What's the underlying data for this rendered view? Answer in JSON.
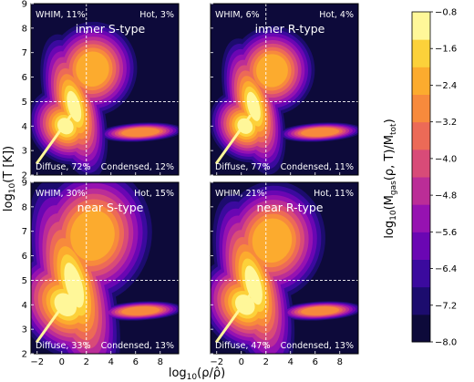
{
  "chart_data": {
    "type": "heatmap",
    "xlabel_main": "log",
    "xlabel_sub": "10",
    "xlabel_rest": "(ρ/ρ̂)",
    "ylabel_main": "log",
    "ylabel_sub": "10",
    "ylabel_rest": "(T [K])",
    "xlim": [
      -2.5,
      9.5
    ],
    "ylim": [
      2,
      9
    ],
    "x_ticks": [
      "−2",
      "0",
      "2",
      "4",
      "6",
      "8"
    ],
    "x_tick_values": [
      -2,
      0,
      2,
      4,
      6,
      8
    ],
    "y_ticks": [
      "2",
      "3",
      "4",
      "5",
      "6",
      "7",
      "8",
      "9"
    ],
    "y_tick_values": [
      2,
      3,
      4,
      5,
      6,
      7,
      8,
      9
    ],
    "threshold_x": 2,
    "threshold_y": 5,
    "panels": [
      {
        "title": "inner S-type",
        "whim": "WHIM, 11%",
        "hot": "Hot, 3%",
        "diffuse": "Diffuse, 72%",
        "condensed": "Condensed, 12%",
        "whim_pct": 11,
        "hot_pct": 3,
        "diffuse_pct": 72,
        "condensed_pct": 12
      },
      {
        "title": "inner R-type",
        "whim": "WHIM, 6%",
        "hot": "Hot, 4%",
        "diffuse": "Diffuse, 77%",
        "condensed": "Condensed, 11%",
        "whim_pct": 6,
        "hot_pct": 4,
        "diffuse_pct": 77,
        "condensed_pct": 11
      },
      {
        "title": "near S-type",
        "whim": "WHIM, 30%",
        "hot": "Hot, 15%",
        "diffuse": "Diffuse, 33%",
        "condensed": "Condensed, 13%",
        "whim_pct": 30,
        "hot_pct": 15,
        "diffuse_pct": 33,
        "condensed_pct": 13
      },
      {
        "title": "near R-type",
        "whim": "WHIM, 21%",
        "hot": "Hot, 11%",
        "diffuse": "Diffuse, 47%",
        "condensed": "Condensed, 13%",
        "whim_pct": 21,
        "hot_pct": 11,
        "diffuse_pct": 47,
        "condensed_pct": 13
      }
    ],
    "colorbar": {
      "label_main": "log",
      "label_sub": "10",
      "label_rest": "(M",
      "label_gas": "gas",
      "label_mid": "(ρ, T)/M",
      "label_tot": "tot",
      "label_end": ")",
      "ticks": [
        "−0.8",
        "−1.6",
        "−2.4",
        "−3.2",
        "−4.0",
        "−4.8",
        "−5.6",
        "−6.4",
        "−7.2",
        "−8.0"
      ],
      "tick_values": [
        -0.8,
        -1.6,
        -2.4,
        -3.2,
        -4.0,
        -4.8,
        -5.6,
        -6.4,
        -7.2,
        -8.0
      ],
      "range": [
        -8.0,
        -0.8
      ],
      "colormap": "plasma-like (dark navy → purple → orange → yellow)",
      "colors": [
        "#0d0a3a",
        "#1c0c6e",
        "#3b0a9e",
        "#6a06b3",
        "#9612b1",
        "#bb2d97",
        "#d84b78",
        "#ec6a57",
        "#f78a3c",
        "#fcab2e",
        "#fcd13a",
        "#fff799"
      ]
    }
  }
}
